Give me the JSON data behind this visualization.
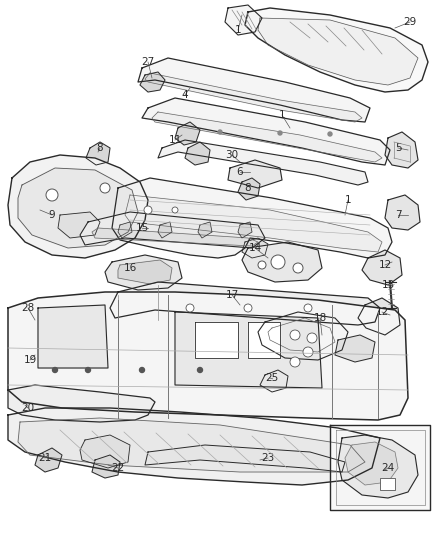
{
  "bg_color": "#ffffff",
  "line_color": "#2a2a2a",
  "label_color": "#2a2a2a",
  "figsize": [
    4.38,
    5.33
  ],
  "dpi": 100,
  "labels": [
    [
      "27",
      148,
      62
    ],
    [
      "1",
      238,
      30
    ],
    [
      "29",
      410,
      22
    ],
    [
      "4",
      185,
      95
    ],
    [
      "1",
      282,
      115
    ],
    [
      "5",
      398,
      148
    ],
    [
      "30",
      232,
      155
    ],
    [
      "6",
      240,
      172
    ],
    [
      "1",
      348,
      200
    ],
    [
      "8",
      100,
      148
    ],
    [
      "11",
      175,
      140
    ],
    [
      "8",
      248,
      188
    ],
    [
      "9",
      52,
      215
    ],
    [
      "15",
      142,
      228
    ],
    [
      "16",
      130,
      268
    ],
    [
      "14",
      255,
      248
    ],
    [
      "7",
      398,
      215
    ],
    [
      "17",
      232,
      295
    ],
    [
      "18",
      320,
      318
    ],
    [
      "12",
      385,
      265
    ],
    [
      "13",
      388,
      285
    ],
    [
      "12",
      382,
      312
    ],
    [
      "28",
      28,
      308
    ],
    [
      "19",
      30,
      360
    ],
    [
      "25",
      272,
      378
    ],
    [
      "20",
      28,
      408
    ],
    [
      "21",
      45,
      458
    ],
    [
      "22",
      118,
      468
    ],
    [
      "23",
      268,
      458
    ],
    [
      "24",
      388,
      468
    ]
  ]
}
